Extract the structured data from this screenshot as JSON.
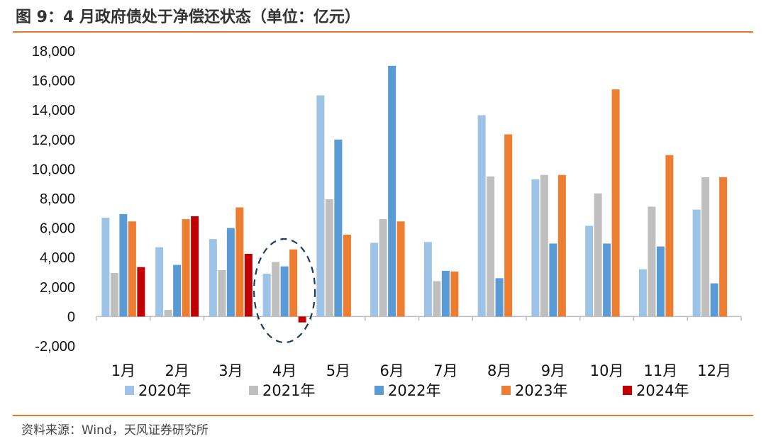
{
  "header": {
    "title": "图 9：4 月政府债处于净偿还状态（单位：亿元）"
  },
  "footer": {
    "source": "资料来源：Wind，天风证券研究所"
  },
  "chart_data": {
    "type": "bar",
    "categories": [
      "1月",
      "2月",
      "3月",
      "4月",
      "5月",
      "6月",
      "7月",
      "8月",
      "9月",
      "10月",
      "11月",
      "12月"
    ],
    "series": [
      {
        "name": "2020年",
        "color": "#9dc3e6",
        "values": [
          6700,
          4700,
          5250,
          2900,
          15000,
          5000,
          5050,
          13650,
          9300,
          6150,
          3200,
          7250
        ]
      },
      {
        "name": "2021年",
        "color": "#bfbfbf",
        "values": [
          2950,
          450,
          3150,
          3700,
          7950,
          6600,
          2400,
          9500,
          9600,
          8350,
          7450,
          9450
        ]
      },
      {
        "name": "2022年",
        "color": "#5b9bd5",
        "values": [
          6950,
          3500,
          6000,
          3400,
          12000,
          17000,
          3100,
          2600,
          4950,
          4950,
          4750,
          2250
        ]
      },
      {
        "name": "2023年",
        "color": "#ed7d31",
        "values": [
          6450,
          6600,
          7400,
          4550,
          5550,
          6450,
          3050,
          12350,
          9600,
          15400,
          10950,
          9450
        ]
      },
      {
        "name": "2024年",
        "color": "#c00000",
        "values": [
          3350,
          6800,
          4250,
          -400,
          null,
          null,
          null,
          null,
          null,
          null,
          null,
          null
        ]
      }
    ],
    "y_ticks": [
      "18,000",
      "16,000",
      "14,000",
      "12,000",
      "10,000",
      "8,000",
      "6,000",
      "4,000",
      "2,000",
      "0",
      "-2,000"
    ],
    "ylim": [
      -2000,
      18000
    ],
    "legend_position": "bottom",
    "annotation": "dashed ellipse highlighting 4月"
  }
}
